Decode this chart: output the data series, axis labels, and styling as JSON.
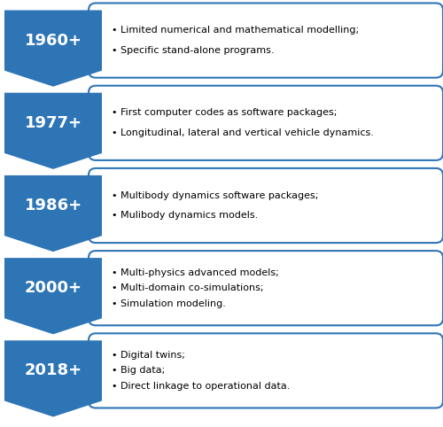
{
  "entries": [
    {
      "year": "1960+",
      "bullets": [
        "Limited numerical and mathematical modelling;",
        "Specific stand-alone programs."
      ]
    },
    {
      "year": "1977+",
      "bullets": [
        "First computer codes as software packages;",
        "Longitudinal, lateral and vertical vehicle dynamics."
      ]
    },
    {
      "year": "1986+",
      "bullets": [
        "Multibody dynamics software packages;",
        "Mulibody dynamics models."
      ]
    },
    {
      "year": "2000+",
      "bullets": [
        "Multi-physics advanced models;",
        "Multi-domain co-simulations;",
        "Simulation modeling."
      ]
    },
    {
      "year": "2018+",
      "bullets": [
        "Digital twins;",
        "Big data;",
        "Direct linkage to operational data."
      ]
    }
  ],
  "box_edge_color": "#2E75B6",
  "box_fill_color": "#FFFFFF",
  "year_text_color": "#FFFFFF",
  "bullet_text_color": "#000000",
  "background_color": "#FFFFFF",
  "year_bg_color": "#2E75B6",
  "figsize": [
    5.0,
    4.82
  ],
  "dpi": 100
}
